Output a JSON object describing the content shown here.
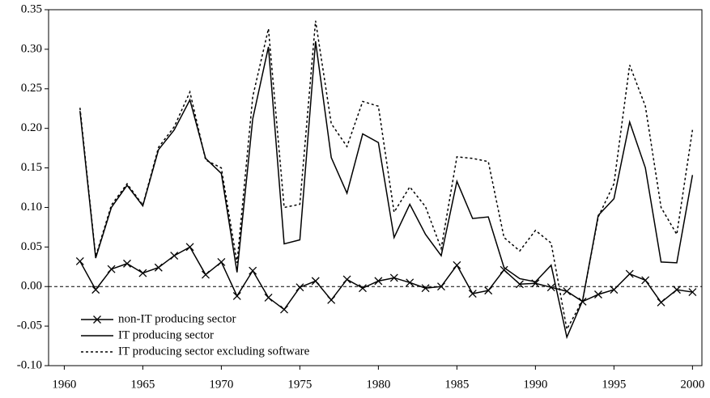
{
  "chart_data": {
    "type": "line",
    "x": [
      1961,
      1962,
      1963,
      1964,
      1965,
      1966,
      1967,
      1968,
      1969,
      1970,
      1971,
      1972,
      1973,
      1974,
      1975,
      1976,
      1977,
      1978,
      1979,
      1980,
      1981,
      1982,
      1983,
      1984,
      1985,
      1986,
      1987,
      1988,
      1989,
      1990,
      1991,
      1992,
      1993,
      1994,
      1995,
      1996,
      1997,
      1998,
      1999,
      2000
    ],
    "series": [
      {
        "name": "non-IT producing sector",
        "color": "#000000",
        "marker": "x",
        "dash": "solid",
        "values": [
          0.032,
          -0.004,
          0.022,
          0.029,
          0.017,
          0.024,
          0.039,
          0.05,
          0.015,
          0.031,
          -0.012,
          0.02,
          -0.014,
          -0.029,
          -0.001,
          0.007,
          -0.017,
          0.009,
          -0.002,
          0.007,
          0.011,
          0.005,
          -0.002,
          0.0,
          0.027,
          -0.009,
          -0.005,
          0.021,
          0.003,
          0.004,
          -0.001,
          -0.006,
          -0.019,
          -0.01,
          -0.004,
          0.016,
          0.008,
          -0.02,
          -0.004,
          -0.007
        ]
      },
      {
        "name": "IT producing sector",
        "color": "#000000",
        "marker": "none",
        "dash": "solid",
        "values": [
          0.222,
          0.036,
          0.1,
          0.128,
          0.102,
          0.173,
          0.198,
          0.236,
          0.162,
          0.143,
          0.018,
          0.212,
          0.303,
          0.054,
          0.059,
          0.31,
          0.163,
          0.118,
          0.193,
          0.182,
          0.062,
          0.104,
          0.066,
          0.039,
          0.133,
          0.086,
          0.088,
          0.024,
          0.01,
          0.006,
          0.027,
          -0.064,
          -0.018,
          0.09,
          0.111,
          0.208,
          0.15,
          0.031,
          0.03,
          0.141
        ]
      },
      {
        "name": "IT producing sector excluding software",
        "color": "#000000",
        "marker": "none",
        "dash": "dotted",
        "values": [
          0.226,
          0.038,
          0.103,
          0.13,
          0.103,
          0.176,
          0.202,
          0.246,
          0.16,
          0.15,
          0.03,
          0.24,
          0.326,
          0.1,
          0.104,
          0.336,
          0.206,
          0.177,
          0.234,
          0.228,
          0.094,
          0.126,
          0.101,
          0.048,
          0.164,
          0.162,
          0.158,
          0.062,
          0.045,
          0.071,
          0.055,
          -0.054,
          -0.018,
          0.088,
          0.13,
          0.28,
          0.228,
          0.1,
          0.066,
          0.198
        ]
      }
    ],
    "xlim": [
      1959,
      2000.6
    ],
    "xticks": [
      1960,
      1965,
      1970,
      1975,
      1980,
      1985,
      1990,
      1995,
      2000
    ],
    "ylim": [
      -0.1,
      0.35
    ],
    "yticks": [
      {
        "value": -0.1,
        "label": "-0.10"
      },
      {
        "value": -0.05,
        "label": "-0.05"
      },
      {
        "value": 0,
        "label": "0.00"
      },
      {
        "value": 0.05,
        "label": "0.05"
      },
      {
        "value": 0.1,
        "label": "0.10"
      },
      {
        "value": 0.15,
        "label": "0.15"
      },
      {
        "value": 0.2,
        "label": "0.20"
      },
      {
        "value": 0.25,
        "label": "0.25"
      },
      {
        "value": 0.3,
        "label": "0.30"
      },
      {
        "value": 0.35,
        "label": "0.35"
      }
    ],
    "zero_line": true,
    "legend": "lower-left"
  }
}
